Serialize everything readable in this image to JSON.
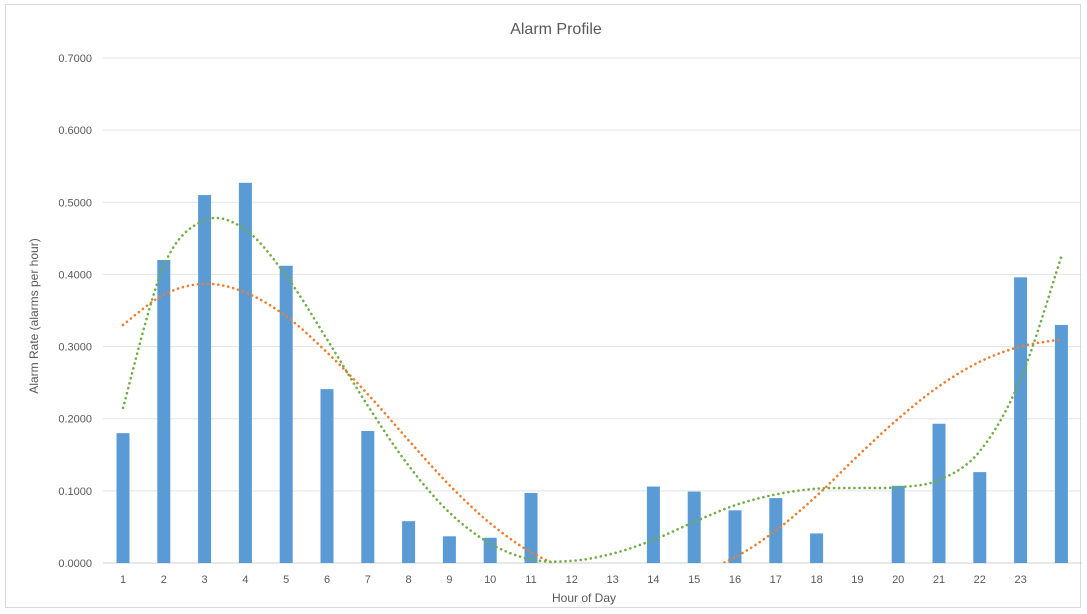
{
  "chart_data": {
    "type": "bar",
    "title": "Alarm Profile",
    "xlabel": "Hour of Day",
    "ylabel": "Alarm Rate (alarms per hour)",
    "ylim": [
      0,
      0.7
    ],
    "y_ticks": [
      "0.0000",
      "0.1000",
      "0.2000",
      "0.3000",
      "0.4000",
      "0.5000",
      "0.6000",
      "0.7000"
    ],
    "categories": [
      "1",
      "2",
      "3",
      "4",
      "5",
      "6",
      "7",
      "8",
      "9",
      "10",
      "11",
      "12",
      "13",
      "14",
      "15",
      "16",
      "17",
      "18",
      "19",
      "20",
      "21",
      "22",
      "23",
      ""
    ],
    "grid": true,
    "series": [
      {
        "type": "bar",
        "color": "#5b9bd5",
        "values": [
          0.18,
          0.42,
          0.51,
          0.527,
          0.412,
          0.241,
          0.183,
          0.058,
          0.037,
          0.035,
          0.097,
          0,
          0,
          0.106,
          0.099,
          0.073,
          0.09,
          0.041,
          0,
          0.107,
          0.193,
          0.126,
          0.396,
          0.33
        ]
      },
      {
        "type": "trendline",
        "color": "#ed7d31",
        "style": "dotted",
        "x": [
          1,
          2,
          3,
          4,
          5,
          6,
          7,
          8,
          9,
          10,
          11,
          12,
          13,
          14,
          15,
          16,
          17,
          18,
          19,
          20,
          21,
          22,
          23,
          24
        ],
        "values": [
          0.33,
          0.372,
          0.387,
          0.375,
          0.342,
          0.292,
          0.234,
          0.17,
          0.108,
          0.055,
          0.015,
          -0.01,
          -0.02,
          -0.02,
          -0.015,
          0.008,
          0.045,
          0.093,
          0.148,
          0.2,
          0.245,
          0.279,
          0.3,
          0.31
        ]
      },
      {
        "type": "trendline",
        "color": "#70ad47",
        "style": "dotted",
        "x": [
          1,
          2,
          3,
          4,
          5,
          6,
          7,
          8,
          9,
          10,
          11,
          12,
          13,
          14,
          15,
          16,
          17,
          18,
          19,
          20,
          21,
          22,
          23,
          24
        ],
        "values": [
          0.215,
          0.412,
          0.475,
          0.462,
          0.398,
          0.31,
          0.218,
          0.135,
          0.07,
          0.027,
          0.005,
          0.003,
          0.013,
          0.032,
          0.057,
          0.08,
          0.095,
          0.103,
          0.104,
          0.105,
          0.115,
          0.155,
          0.255,
          0.425
        ]
      }
    ]
  }
}
